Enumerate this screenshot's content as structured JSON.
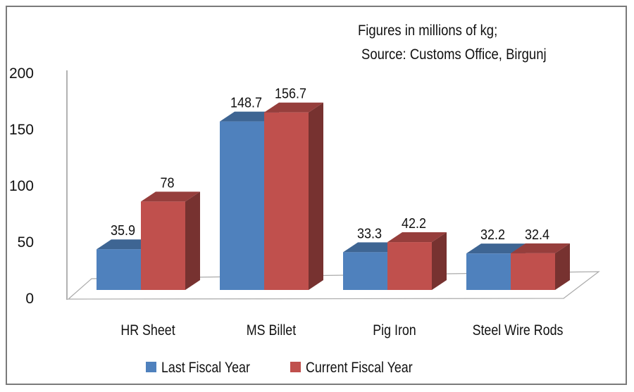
{
  "chart_data": {
    "type": "bar",
    "style": "3d-clustered-column",
    "annotation": [
      "Figures in millions of kg;",
      "Source: Customs Office, Birgunj"
    ],
    "categories": [
      "HR Sheet",
      "MS Billet",
      "Pig Iron",
      "Steel Wire Rods"
    ],
    "series": [
      {
        "name": "Last Fiscal Year",
        "values": [
          35.9,
          148.7,
          33.3,
          32.2
        ],
        "color": "#4f81bd"
      },
      {
        "name": "Current Fiscal Year",
        "values": [
          78,
          156.7,
          42.2,
          32.4
        ],
        "color": "#c0504d"
      }
    ],
    "value_labels": [
      [
        "35.9",
        "148.7",
        "33.3",
        "32.2"
      ],
      [
        "78",
        "156.7",
        "42.2",
        "32.4"
      ]
    ],
    "yticks": [
      "0",
      "50",
      "100",
      "150",
      "200"
    ],
    "ylim": [
      0,
      200
    ],
    "grid": false,
    "legend": "bottom"
  }
}
